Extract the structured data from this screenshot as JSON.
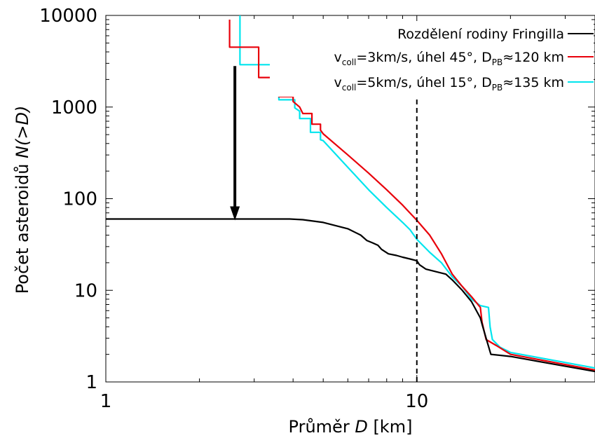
{
  "chart_data": {
    "type": "line",
    "xlabel_prefix": "Průměr ",
    "xlabel_var": "D",
    "xlabel_suffix": " [km]",
    "ylabel_prefix": "Počet asteroidů ",
    "ylabel_var": "N(>D)",
    "x_scale": "log",
    "y_scale": "log",
    "xlim": [
      1,
      37.4
    ],
    "ylim": [
      1,
      10000
    ],
    "x_ticks": [
      1,
      10
    ],
    "x_tick_labels": [
      "1",
      "10"
    ],
    "y_ticks": [
      1,
      10,
      100,
      1000,
      10000
    ],
    "y_tick_labels": [
      "1",
      "10",
      "100",
      "1000",
      "10000"
    ],
    "grid": false,
    "legend_position": "top-right",
    "vline_x": 10,
    "arrow": {
      "x": 2.6,
      "y_from": 2800,
      "y_to": 60
    },
    "series": [
      {
        "name": "Rozdělení rodiny Fringilla",
        "color": "#000000",
        "points": [
          [
            1,
            60
          ],
          [
            2,
            60
          ],
          [
            3,
            60
          ],
          [
            3.9,
            60
          ],
          [
            4.3,
            59
          ],
          [
            5,
            55
          ],
          [
            6,
            47
          ],
          [
            6.6,
            40
          ],
          [
            6.9,
            35
          ],
          [
            7.2,
            33
          ],
          [
            7.5,
            31
          ],
          [
            7.7,
            28
          ],
          [
            8.1,
            25
          ],
          [
            8.6,
            24
          ],
          [
            9,
            23
          ],
          [
            9.5,
            22
          ],
          [
            10,
            21
          ],
          [
            10.2,
            19
          ],
          [
            10.7,
            17
          ],
          [
            11.5,
            16
          ],
          [
            12.4,
            15
          ],
          [
            13,
            13
          ],
          [
            14,
            10
          ],
          [
            15,
            7.5
          ],
          [
            16,
            5
          ],
          [
            16.3,
            4
          ],
          [
            16.7,
            3
          ],
          [
            17.3,
            2
          ],
          [
            20,
            1.9
          ],
          [
            37.4,
            1.3
          ]
        ]
      },
      {
        "name_parts": {
          "v": "v",
          "v_sub": "coll",
          "mid": "=3km/s, úhel 45°, D",
          "d_sub": "PB",
          "end": "≈120 km"
        },
        "color": "#e8000b",
        "points": [
          [
            2.5,
            9000
          ],
          [
            2.5,
            4500
          ],
          [
            3.1,
            4500
          ],
          [
            3.1,
            2100
          ],
          [
            3.6,
            2100
          ],
          [
            3.6,
            1300
          ],
          [
            4,
            1300
          ],
          [
            4,
            1150
          ],
          [
            4.2,
            1000
          ],
          [
            4.3,
            850
          ],
          [
            4.6,
            850
          ],
          [
            4.6,
            650
          ],
          [
            4.9,
            650
          ],
          [
            4.9,
            560
          ],
          [
            5,
            510
          ],
          [
            6,
            300
          ],
          [
            7,
            190
          ],
          [
            8,
            125
          ],
          [
            9,
            85
          ],
          [
            10,
            58
          ],
          [
            11,
            40
          ],
          [
            12,
            25
          ],
          [
            13,
            15
          ],
          [
            14,
            11
          ],
          [
            15,
            8.5
          ],
          [
            16,
            6.5
          ],
          [
            16.2,
            4.5
          ],
          [
            16.7,
            2.9
          ],
          [
            18,
            2.5
          ],
          [
            20,
            2.0
          ],
          [
            37.4,
            1.35
          ]
        ]
      },
      {
        "name_parts": {
          "v": "v",
          "v_sub": "coll",
          "mid": "=5km/s, úhel 15°, D",
          "d_sub": "PB",
          "end": "≈135 km"
        },
        "color": "#00e5ee",
        "points": [
          [
            2.7,
            10000
          ],
          [
            2.7,
            2900
          ],
          [
            3.6,
            2900
          ],
          [
            3.6,
            1200
          ],
          [
            4.05,
            1200
          ],
          [
            4.05,
            980
          ],
          [
            4.2,
            900
          ],
          [
            4.2,
            750
          ],
          [
            4.55,
            750
          ],
          [
            4.55,
            530
          ],
          [
            4.9,
            530
          ],
          [
            4.9,
            440
          ],
          [
            5,
            430
          ],
          [
            6,
            220
          ],
          [
            7,
            125
          ],
          [
            8,
            80
          ],
          [
            9,
            55
          ],
          [
            9.5,
            46
          ],
          [
            10,
            36
          ],
          [
            11,
            26
          ],
          [
            12,
            20
          ],
          [
            13,
            14
          ],
          [
            14,
            11
          ],
          [
            15,
            8
          ],
          [
            16,
            6.8
          ],
          [
            17,
            6.5
          ],
          [
            17.2,
            4
          ],
          [
            17.5,
            2.9
          ],
          [
            18.5,
            2.4
          ],
          [
            20,
            2.1
          ],
          [
            37.4,
            1.42
          ]
        ]
      }
    ]
  }
}
